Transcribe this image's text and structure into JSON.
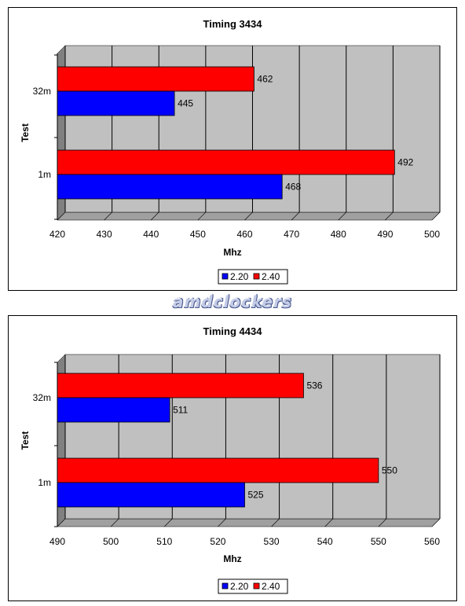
{
  "watermark": "amdclockers",
  "chart_data": [
    {
      "type": "bar",
      "orientation": "horizontal",
      "title": "Timing 3434",
      "xlabel": "Mhz",
      "ylabel": "Test",
      "categories": [
        "32m",
        "1m"
      ],
      "series": [
        {
          "name": "2.40",
          "color": "#ff0000",
          "values": [
            462,
            492
          ]
        },
        {
          "name": "2.20",
          "color": "#0000ff",
          "values": [
            445,
            468
          ]
        }
      ],
      "xlim": [
        420,
        500
      ],
      "xticks": [
        420,
        430,
        440,
        450,
        460,
        470,
        480,
        490,
        500
      ],
      "grid": true,
      "plot_background": "#c0c0c0",
      "legend": {
        "placement": "bottom",
        "entries": [
          "2.20",
          "2.40"
        ]
      }
    },
    {
      "type": "bar",
      "orientation": "horizontal",
      "title": "Timing 4434",
      "xlabel": "Mhz",
      "ylabel": "Test",
      "categories": [
        "32m",
        "1m"
      ],
      "series": [
        {
          "name": "2.40",
          "color": "#ff0000",
          "values": [
            536,
            550
          ]
        },
        {
          "name": "2.20",
          "color": "#0000ff",
          "values": [
            511,
            525
          ]
        }
      ],
      "xlim": [
        490,
        560
      ],
      "xticks": [
        490,
        500,
        510,
        520,
        530,
        540,
        550,
        560
      ],
      "grid": true,
      "plot_background": "#c0c0c0",
      "legend": {
        "placement": "bottom",
        "entries": [
          "2.20",
          "2.40"
        ]
      }
    }
  ]
}
